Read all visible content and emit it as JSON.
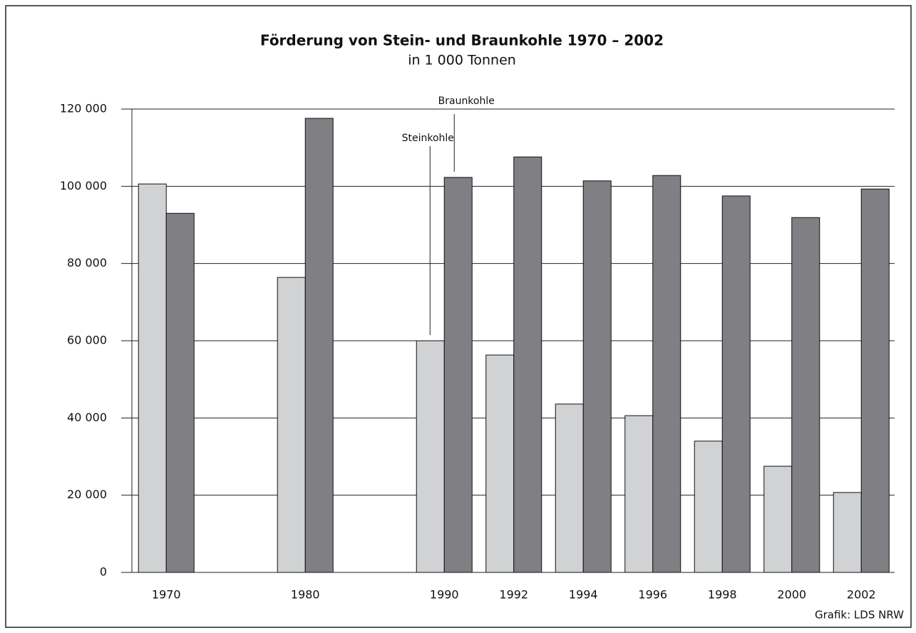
{
  "chart_data": {
    "type": "bar",
    "title": "Förderung von Stein- und Braunkohle 1970 – 2002",
    "subtitle": "in 1 000 Tonnen",
    "source": "Grafik: LDS NRW",
    "categories": [
      "1970",
      null,
      "1980",
      null,
      "1990",
      "1992",
      "1994",
      "1996",
      "1998",
      "2000",
      "2002"
    ],
    "series": [
      {
        "name": "Steinkohle",
        "color": "#d1d2d4",
        "values": [
          100600,
          null,
          76400,
          null,
          60000,
          56300,
          43600,
          40600,
          34000,
          27500,
          20700
        ]
      },
      {
        "name": "Braunkohle",
        "color": "#808084",
        "values": [
          93000,
          null,
          117600,
          null,
          102300,
          107600,
          101400,
          102800,
          97500,
          91900,
          99300
        ]
      }
    ],
    "ylim": [
      0,
      120000
    ],
    "yticks": [
      {
        "value": 0,
        "label": "0"
      },
      {
        "value": 20000,
        "label": "20 000"
      },
      {
        "value": 40000,
        "label": "40 000"
      },
      {
        "value": 60000,
        "label": "60 000"
      },
      {
        "value": 80000,
        "label": "80 000"
      },
      {
        "value": 100000,
        "label": "100 000"
      },
      {
        "value": 120000,
        "label": "120 000"
      }
    ],
    "grid": true
  }
}
